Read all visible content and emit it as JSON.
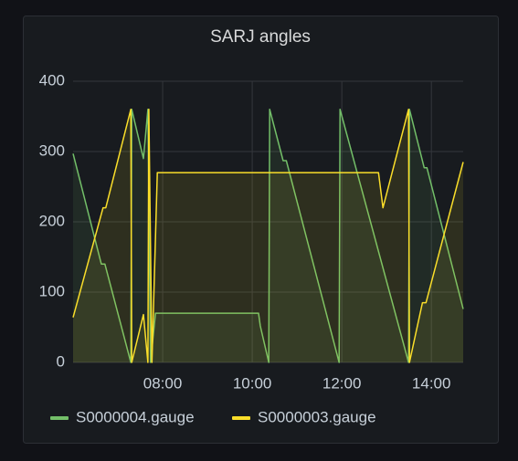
{
  "chart_data": {
    "type": "line",
    "title": "SARJ angles",
    "xlim": [
      6,
      14.71
    ],
    "xticks": [
      {
        "value": 8,
        "label": "08:00"
      },
      {
        "value": 10,
        "label": "10:00"
      },
      {
        "value": 12,
        "label": "12:00"
      },
      {
        "value": 14,
        "label": "14:00"
      }
    ],
    "ylim": [
      0,
      400
    ],
    "yticks": [
      0,
      100,
      200,
      300,
      400
    ],
    "grid": true,
    "fill": true,
    "legend": "bottom",
    "series": [
      {
        "name": "S0000004.gauge",
        "color": "#73bf69",
        "x": [
          6.0,
          6.63,
          6.71,
          7.29,
          7.31,
          7.57,
          7.67,
          7.73,
          7.84,
          10.14,
          10.18,
          10.37,
          10.39,
          10.69,
          10.76,
          11.94,
          11.96,
          13.49,
          13.51,
          13.84,
          13.9,
          14.71
        ],
        "values": [
          297,
          140,
          140,
          0,
          360,
          290,
          360,
          0,
          70,
          70,
          52,
          0,
          360,
          287,
          287,
          0,
          360,
          0,
          360,
          277,
          277,
          76
        ]
      },
      {
        "name": "S0000003.gauge",
        "color": "#fade2a",
        "x": [
          6.0,
          6.67,
          6.73,
          7.29,
          7.31,
          7.57,
          7.67,
          7.69,
          7.76,
          7.88,
          12.82,
          12.92,
          13.49,
          13.51,
          13.8,
          13.88,
          14.71
        ],
        "values": [
          64,
          220,
          220,
          360,
          0,
          68,
          0,
          360,
          0,
          270,
          270,
          220,
          360,
          0,
          85,
          85,
          285
        ]
      }
    ]
  }
}
